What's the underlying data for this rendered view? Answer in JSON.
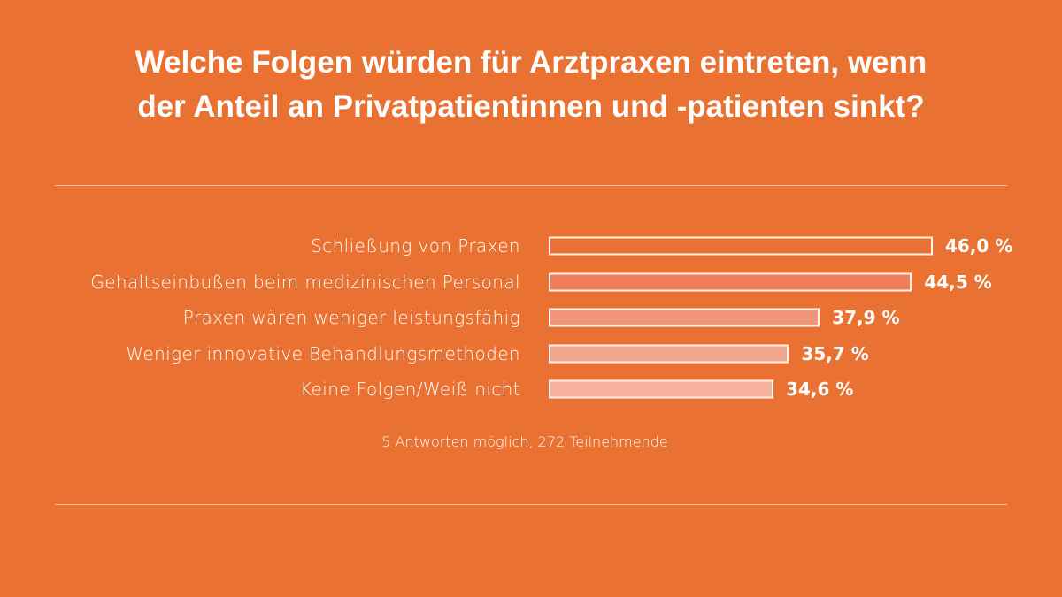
{
  "chart_data": {
    "type": "bar",
    "orientation": "horizontal",
    "title": "Welche Folgen würden für Arztpraxen eintreten, wenn der Anteil an Privatpatientinnen und -patienten sinkt?",
    "title_lines": [
      "Welche Folgen würden für Arztpraxen eintreten, wenn",
      "der Anteil an Privatpatientinnen und -patienten sinkt?"
    ],
    "categories": [
      "Schließung von Praxen",
      "Gehaltseinbußen beim medizinischen Personal",
      "Praxen wären weniger leistungsfähig",
      "Weniger innovative Behandlungsmethoden",
      "Keine Folgen/Weiß nicht"
    ],
    "values": [
      46.0,
      44.5,
      37.9,
      35.7,
      34.6
    ],
    "value_labels": [
      "46,0 %",
      "44,5 %",
      "37,9 %",
      "35,7 %",
      "34,6 %"
    ],
    "bar_colors": [
      "#E97132",
      "#EE7F59",
      "#F19679",
      "#F3A68B",
      "#F5B19C"
    ],
    "note": "5 Antworten möglich, 272 Teilnehmende",
    "grid": false,
    "legend": "none",
    "xlabel": "",
    "ylabel": ""
  },
  "colors": {
    "background": "#E97132",
    "text": "#FFFFFF"
  }
}
